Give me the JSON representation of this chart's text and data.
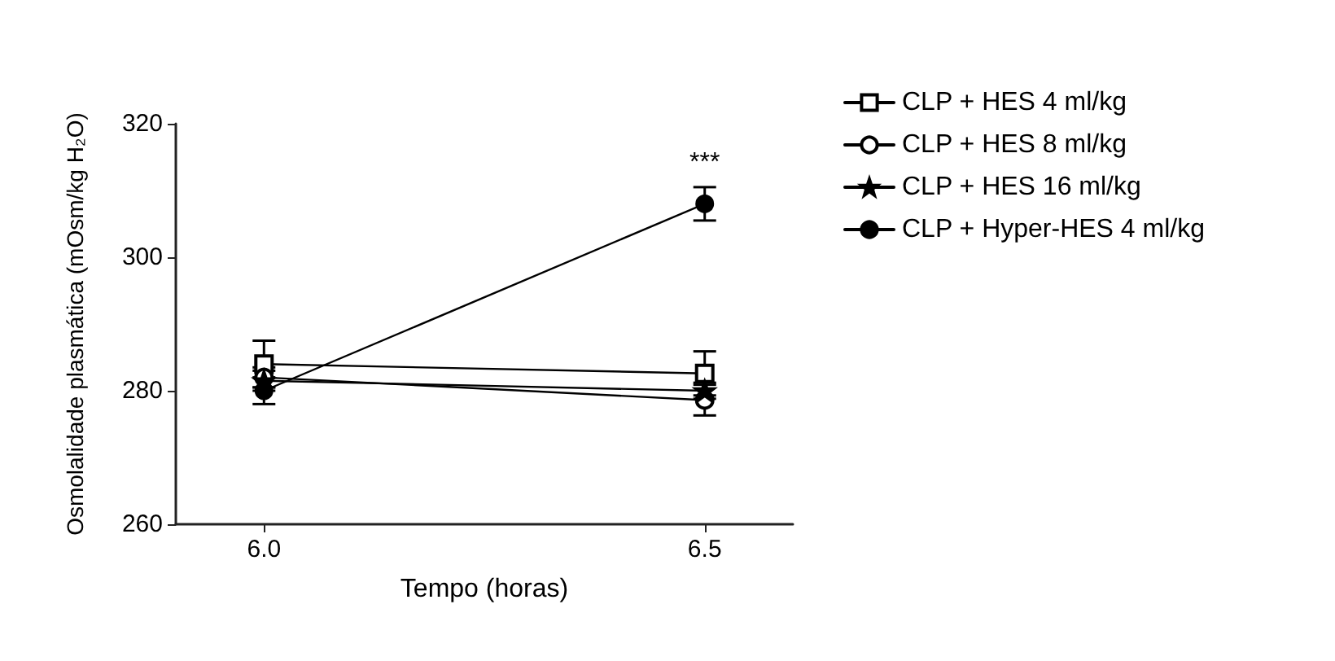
{
  "chart_data": {
    "type": "line",
    "xlabel": "Tempo (horas)",
    "ylabel": "Osmolalidade plasmática (mOsm/kg H₂O)",
    "x": [
      6.0,
      6.5
    ],
    "xlim": [
      5.9,
      6.6
    ],
    "xticks": [
      {
        "value": 6.0,
        "label": "6.0"
      },
      {
        "value": 6.5,
        "label": "6.5"
      }
    ],
    "ylim": [
      260,
      320
    ],
    "yticks": [
      260,
      280,
      300,
      320
    ],
    "grid": false,
    "legend": "right",
    "line_style": "solid",
    "series": [
      {
        "name": "CLP + HES 4 ml/kg",
        "color": "#000000",
        "marker": "square",
        "values": [
          284,
          282.6
        ],
        "errors": [
          3.5,
          3.3
        ]
      },
      {
        "name": "CLP + HES 8 ml/kg",
        "color": "#000000",
        "marker": "circle",
        "values": [
          282,
          278.6
        ],
        "errors": [
          1.5,
          2.3
        ]
      },
      {
        "name": "CLP + HES 16 ml/kg",
        "color": "#000000",
        "marker": "star",
        "values": [
          281.5,
          280
        ],
        "errors": [
          1.5,
          1.2
        ]
      },
      {
        "name": "CLP + Hyper-HES 4 ml/kg",
        "color": "#000000",
        "marker": "filled-circle",
        "values": [
          280,
          308
        ],
        "errors": [
          2,
          2.5
        ]
      }
    ],
    "annotations": [
      "***"
    ]
  }
}
